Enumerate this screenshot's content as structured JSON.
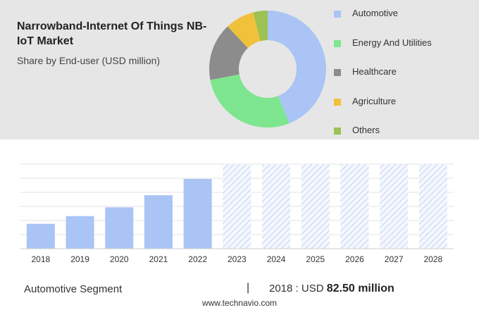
{
  "header": {
    "title": "Narrowband-Internet Of Things NB-IoT Market",
    "subtitle": "Share by End-user (USD million)"
  },
  "legend": {
    "items": [
      {
        "label": "Automotive",
        "color": "#a9c4f5"
      },
      {
        "label": "Energy And Utilities",
        "color": "#7de68f"
      },
      {
        "label": "Healthcare",
        "color": "#8c8c8c"
      },
      {
        "label": "Agriculture",
        "color": "#f0c13a"
      },
      {
        "label": "Others",
        "color": "#9dc153"
      }
    ]
  },
  "chart_data": [
    {
      "type": "pie",
      "donut": true,
      "categories": [
        "Automotive",
        "Energy And Utilities",
        "Healthcare",
        "Agriculture",
        "Others"
      ],
      "values": [
        44,
        28,
        16,
        8,
        4
      ],
      "colors": [
        "#a9c4f5",
        "#7de68f",
        "#8c8c8c",
        "#f0c13a",
        "#9dc153"
      ]
    },
    {
      "type": "bar",
      "categories": [
        "2018",
        "2019",
        "2020",
        "2021",
        "2022",
        "2023",
        "2024",
        "2025",
        "2026",
        "2027",
        "2028"
      ],
      "values": [
        82.5,
        108,
        137,
        177,
        231,
        null,
        null,
        null,
        null,
        null,
        null
      ],
      "forecast_from": "2023",
      "ylim": [
        0,
        280
      ],
      "grid": true,
      "bar_color": "#a9c4f5"
    }
  ],
  "footer": {
    "segment": "Automotive Segment",
    "separator": "|",
    "year_label": "2018 : USD",
    "value": "82.50 million",
    "watermark": "www.technavio.com"
  }
}
